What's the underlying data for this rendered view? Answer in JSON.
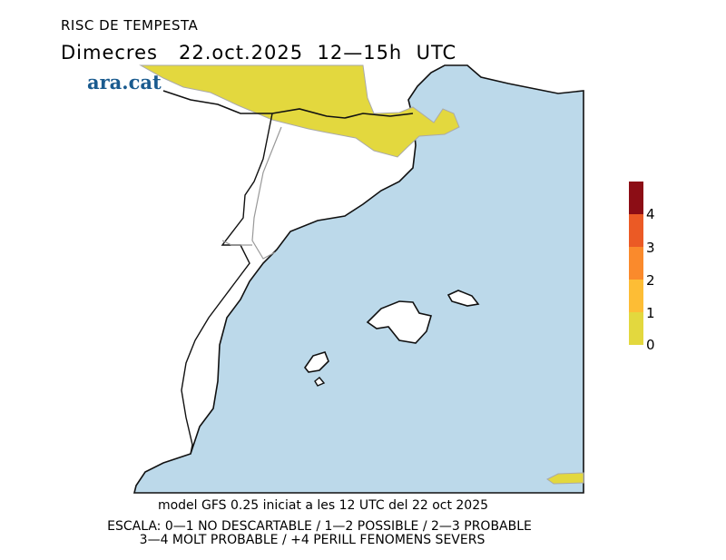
{
  "header": {
    "title": "RISC DE TEMPESTA",
    "subtitle": "Dimecres   22.oct.2025  12—15h  UTC"
  },
  "logo": "ara.cat",
  "colors": {
    "sea": "#bcd9ea",
    "land": "#ffffff",
    "risk0_1": "#e3d83e",
    "risk1_2": "#fdbd35",
    "risk2_3": "#fa8a2c",
    "risk3_4": "#eb5a25",
    "risk4": "#8c0d15"
  },
  "legend": {
    "labels": [
      "0",
      "1",
      "2",
      "3",
      "4"
    ]
  },
  "footer": {
    "model": "model GFS 0.25 iniciat a les 12 UTC del 22 oct 2025",
    "scale1": "ESCALA: 0—1 NO DESCARTABLE / 1—2 POSSIBLE / 2—3 PROBABLE",
    "scale2": "3—4 MOLT PROBABLE / +4 PERILL FENOMENS SEVERS"
  }
}
